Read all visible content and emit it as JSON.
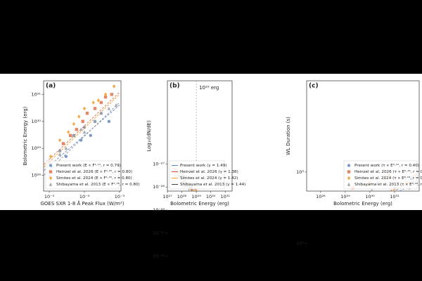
{
  "chart_data": [
    {
      "type": "scatter",
      "panel_label": "(a)",
      "xlabel": "GOES SXR 1-8 Å Peak Flux (W/m²)",
      "ylabel": "Bolometric Energy (erg)",
      "log_x": true,
      "log_y": true,
      "legend": "lower right",
      "xlim": [
        6.9e-06,
        0.0011
      ],
      "ylim": [
        2.6e+27,
        3.2e+31
      ],
      "xticks": [
        {
          "value": 1e-05,
          "label": "10⁻⁵"
        },
        {
          "value": 0.0001,
          "label": "10⁻⁴"
        },
        {
          "value": 0.001,
          "label": "10⁻³"
        }
      ],
      "yticks": [
        {
          "value": 1e+28,
          "label": "10²⁸"
        },
        {
          "value": 1e+29,
          "label": "10²⁹"
        },
        {
          "value": 1e+30,
          "label": "10³⁰"
        },
        {
          "value": 1e+31,
          "label": "10³¹"
        }
      ],
      "series": [
        {
          "name": "Present work (E ∝ F¹·¹¹, r = 0.79)",
          "color": "#6b8fc7",
          "marker": "circle",
          "x": [
            1.2e-05,
            2e-05,
            3e-05,
            5e-05,
            8e-05,
            0.0001,
            0.00015,
            0.0002,
            0.0003,
            0.0005
          ],
          "values": [
            2e+28,
            8e+28,
            5e+28,
            3e+29,
            2e+29,
            6e+29,
            3e+29,
            1e+30,
            2e+30,
            1e+30
          ],
          "fit_x": [
            7e-06,
            0.001
          ],
          "fit_y": [
            1.5e+28,
            4e+30
          ]
        },
        {
          "name": "Heinzel et al. 2026 (E ∝ F¹·⁰⁵, r = 0.80)",
          "color": "#e07b54",
          "marker": "square",
          "x": [
            1e-05,
            2.5e-05,
            4e-05,
            6e-05,
            9e-05,
            0.00012,
            0.0002,
            0.0003,
            0.0004,
            0.0006
          ],
          "values": [
            3e+28,
            1.5e+29,
            3e+29,
            5e+29,
            1e+30,
            2e+30,
            3e+30,
            5e+30,
            8e+30,
            1e+31
          ],
          "fit_x": [
            7e-06,
            0.001
          ],
          "fit_y": [
            2.5e+28,
            1.2e+31
          ]
        },
        {
          "name": "Simões et al. 2024 (E ∝ F¹·⁰⁵, r = 0.80)",
          "color": "#f2a33a",
          "marker": "diamond",
          "x": [
            1.1e-05,
            2e-05,
            3.5e-05,
            5e-05,
            7e-05,
            0.0001,
            0.00018,
            0.00025,
            0.0004,
            0.0007
          ],
          "values": [
            5e+28,
            2e+29,
            4e+29,
            8e+29,
            1.5e+30,
            3e+30,
            5e+30,
            6e+30,
            1e+31,
            2e+31
          ],
          "fit_x": [
            7e-06,
            0.001
          ],
          "fit_y": [
            2e+28,
            1e+31
          ]
        },
        {
          "name": "Shibayama et al. 2013 (E ∝ F¹·⁰⁵, r = 0.80)",
          "color": "#9aa1aa",
          "marker": "triangle",
          "x": [
            1e-05,
            2e-05,
            3e-05,
            5e-05,
            8e-05,
            0.0001,
            0.0002,
            0.0003,
            0.0005,
            0.0008
          ],
          "values": [
            1e+28,
            6e+28,
            1e+29,
            3e+29,
            5e+29,
            4e+29,
            1e+30,
            2e+30,
            3e+30,
            4e+30
          ],
          "fit_x": [
            7e-06,
            0.001
          ],
          "fit_y": [
            1e+28,
            5e+30
          ]
        }
      ]
    },
    {
      "type": "step",
      "panel_label": "(b)",
      "xlabel": "Bolometric Energy (erg)",
      "ylabel": "Log₁₀(dN/dE)",
      "log_x": true,
      "log_y": true,
      "legend": "lower left",
      "xlim": [
        1e+27,
        3e+31
      ],
      "ylim": [
        1.26e-27,
        2.1e-32
      ],
      "xticks": [
        {
          "value": 1e+27,
          "label": "10²⁷"
        },
        {
          "value": 1e+28,
          "label": "10²⁸"
        },
        {
          "value": 1e+29,
          "label": "10²⁹"
        },
        {
          "value": 1e+30,
          "label": "10³⁰"
        },
        {
          "value": 1e+31,
          "label": "10³¹"
        }
      ],
      "yticks": [
        {
          "value": 1e-27,
          "label": "10⁻²⁷"
        },
        {
          "value": 1e-28,
          "label": "10⁻²⁸"
        },
        {
          "value": 1e-29,
          "label": "10⁻²⁹"
        },
        {
          "value": 1e-30,
          "label": "10⁻³⁰"
        },
        {
          "value": 1e-31,
          "label": "10⁻³¹"
        }
      ],
      "annotation": {
        "text": "10²⁹ erg",
        "x": 1e+29
      },
      "series": [
        {
          "name": "Present work (γ = 1.49)",
          "color": "#5b86c2",
          "bins": [
            1.5e+27,
            4e+27,
            1e+28,
            3e+28,
            1e+29,
            3e+29,
            1e+30,
            3e+30,
            1e+31,
            2e+31
          ],
          "values": [
            5e-28,
            5e-28,
            1e-28,
            6e-29,
            3e-29,
            4e-30,
            1e-30,
            3e-31,
            4e-31
          ],
          "fit_x": [
            1e+29,
            2e+31
          ],
          "fit_y": [
            3e-29,
            1.2e-32
          ]
        },
        {
          "name": "Heinzel et al. 2026 (γ = 1.38)",
          "color": "#d0533a",
          "bins": [
            2e+27,
            5e+27,
            1.2e+28,
            3.5e+28,
            1e+29,
            3.5e+29,
            1.2e+30,
            3.5e+30,
            1.2e+31,
            2.2e+31
          ],
          "values": [
            6e-28,
            4e-28,
            1.5e-28,
            8e-29,
            2.5e-29,
            6e-30,
            1.5e-30,
            4e-31,
            2e-31
          ],
          "fit_x": [
            1e+29,
            2e+31
          ],
          "fit_y": [
            3.5e-29,
            2.4e-32
          ]
        },
        {
          "name": "Simões et al. 2024 (γ = 1.42)",
          "color": "#f0a030",
          "bins": [
            2.5e+27,
            6e+27,
            1.5e+28,
            4e+28,
            1.2e+29,
            4e+29,
            1.4e+30,
            4e+30,
            1.4e+31,
            2.5e+31
          ],
          "values": [
            4e-28,
            3e-28,
            1.2e-28,
            7e-29,
            2e-29,
            5e-30,
            1.2e-30,
            2.5e-31,
            1.5e-31
          ],
          "fit_x": [
            1e+29,
            2e+31
          ],
          "fit_y": [
            3.2e-29,
            1.7e-32
          ]
        },
        {
          "name": "Shibayama et al. 2013 (γ = 1.44)",
          "color": "#3c3f44",
          "bins": [
            3e+27,
            7e+27,
            1.7e+28,
            5e+28,
            1.5e+29,
            5e+29,
            1.6e+30,
            5e+30,
            1.6e+31,
            2.8e+31
          ],
          "values": [
            3e-28,
            3e-28,
            1e-28,
            5e-29,
            2e-29,
            4e-30,
            9e-31,
            2e-31,
            1e-31
          ],
          "fit_x": [
            1e+29,
            2e+31
          ],
          "fit_y": [
            3e-29,
            1.5e-32
          ]
        }
      ]
    },
    {
      "type": "scatter",
      "panel_label": "(c)",
      "xlabel": "Bolometric Energy (erg)",
      "ylabel": "WL Duration (s)",
      "log_x": true,
      "log_y": true,
      "legend": "lower right",
      "xlim": [
        2.7e+27,
        1e+32
      ],
      "ylim": [
        1400,
        40
      ],
      "xticks": [
        {
          "value": 1e+28,
          "label": "10²⁸"
        },
        {
          "value": 1e+29,
          "label": "10²⁹"
        },
        {
          "value": 1e+30,
          "label": "10³⁰"
        },
        {
          "value": 1e+31,
          "label": "10³¹"
        }
      ],
      "yticks": [
        {
          "value": 100,
          "label": "10²"
        },
        {
          "value": 1000,
          "label": "10³"
        }
      ],
      "series": [
        {
          "name": "Present work (τ ∝ E⁰·¹², r = 0.40)",
          "color": "#6b8fc7",
          "marker": "circle",
          "x": [
            1e+28,
            5e+28,
            1e+29,
            3e+29,
            1e+30,
            2e+30,
            5e+30,
            1e+31,
            2e+31,
            5e+31
          ],
          "values": [
            200,
            400,
            150,
            500,
            300,
            700,
            250,
            600,
            400,
            800
          ],
          "fit_x": [
            5e+27,
            8e+31
          ],
          "fit_y": [
            150,
            700
          ]
        },
        {
          "name": "Heinzel et al. 2026 (τ ∝ E⁰·¹⁶, r = 0.51)",
          "color": "#e07b54",
          "marker": "square",
          "x": [
            3e+28,
            1e+29,
            2e+29,
            5e+29,
            1e+30,
            3e+30,
            6e+30,
            1e+31,
            3e+31,
            6e+31
          ],
          "values": [
            150,
            300,
            600,
            250,
            700,
            400,
            900,
            350,
            700,
            500
          ],
          "fit_x": [
            5e+27,
            8e+31
          ],
          "fit_y": [
            180,
            800
          ]
        },
        {
          "name": "Simões et al. 2024 (τ ∝ E⁰·¹⁶, r = 0.51)",
          "color": "#f2a33a",
          "marker": "diamond",
          "x": [
            4e+28,
            1.5e+29,
            3e+29,
            7e+29,
            1.5e+30,
            4e+30,
            8e+30,
            1.5e+31,
            4e+31,
            7e+31
          ],
          "values": [
            180,
            350,
            250,
            650,
            400,
            800,
            300,
            700,
            500,
            900
          ],
          "fit_x": [
            5e+27,
            8e+31
          ],
          "fit_y": [
            170,
            780
          ]
        },
        {
          "name": "Shibayama et al. 2013 (τ ∝ E⁰·¹⁶, r = 0.51)",
          "color": "#9aa1aa",
          "marker": "triangle",
          "x": [
            2e+28,
            8e+28,
            2.5e+29,
            6e+29,
            1.2e+30,
            2.5e+30,
            7e+30,
            1.2e+31,
            2.5e+31,
            4e+31
          ],
          "values": [
            220,
            180,
            450,
            350,
            550,
            300,
            650,
            450,
            850,
            600
          ],
          "fit_x": [
            5e+27,
            8e+31
          ],
          "fit_y": [
            160,
            760
          ]
        }
      ]
    }
  ]
}
